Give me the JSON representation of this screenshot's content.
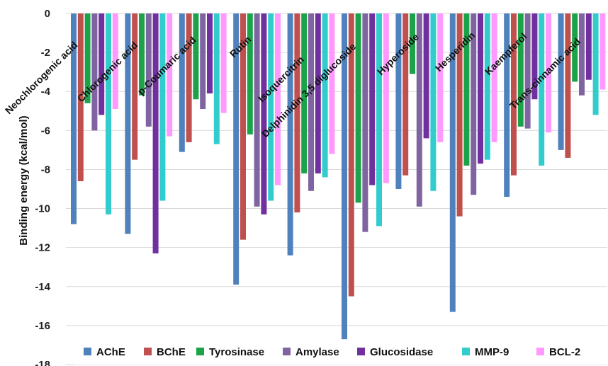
{
  "chart_data": {
    "type": "bar",
    "ylabel": "Binding energy (kcal/mol)",
    "ylim": [
      -18,
      0
    ],
    "yticks": [
      0,
      -2,
      -4,
      -6,
      -8,
      -10,
      -12,
      -14,
      -16,
      -18
    ],
    "grid": true,
    "legend_position": "bottom",
    "categories": [
      "Neochlorogenic acid",
      "Chlorogenic acid",
      "p-Coumaric acid",
      "Rutin",
      "Isoquercitrin",
      "Delphinidin 3,5 diglucoside",
      "Hyperoside",
      "Hesperidin",
      "Kaempferol",
      "Trans-cinnamic acid"
    ],
    "series": [
      {
        "name": "AChE",
        "color": "#4f81bd",
        "values": [
          -10.8,
          -11.3,
          -7.1,
          -13.9,
          -12.4,
          -16.7,
          -9.0,
          -15.3,
          -9.4,
          -7.0
        ]
      },
      {
        "name": "BChE",
        "color": "#c0504d",
        "values": [
          -8.6,
          -7.5,
          -6.6,
          -11.6,
          -10.2,
          -14.5,
          -8.3,
          -10.4,
          -8.3,
          -7.4
        ]
      },
      {
        "name": "Tyrosinase",
        "color": "#1ca34a",
        "values": [
          -4.6,
          -4.2,
          -4.4,
          -6.2,
          -8.2,
          -9.7,
          -3.1,
          -7.8,
          -5.8,
          -3.5
        ]
      },
      {
        "name": "Amylase",
        "color": "#8064a2",
        "values": [
          -6.0,
          -5.8,
          -4.9,
          -9.9,
          -9.1,
          -11.2,
          -9.9,
          -9.3,
          -5.9,
          -4.2
        ]
      },
      {
        "name": "Glucosidase",
        "color": "#7030a0",
        "values": [
          -5.2,
          -12.3,
          -4.1,
          -10.3,
          -8.2,
          -8.8,
          -6.4,
          -7.7,
          -4.4,
          -3.4
        ]
      },
      {
        "name": "MMP-9",
        "color": "#33cccc",
        "values": [
          -10.3,
          -9.6,
          -6.7,
          -9.6,
          -8.4,
          -10.9,
          -9.1,
          -7.5,
          -7.8,
          -5.2
        ]
      },
      {
        "name": "BCL-2",
        "color": "#ff99ff",
        "values": [
          -4.9,
          -6.3,
          -5.1,
          -8.8,
          -7.2,
          -8.7,
          -6.6,
          -6.6,
          -6.1,
          -3.9
        ]
      }
    ]
  }
}
